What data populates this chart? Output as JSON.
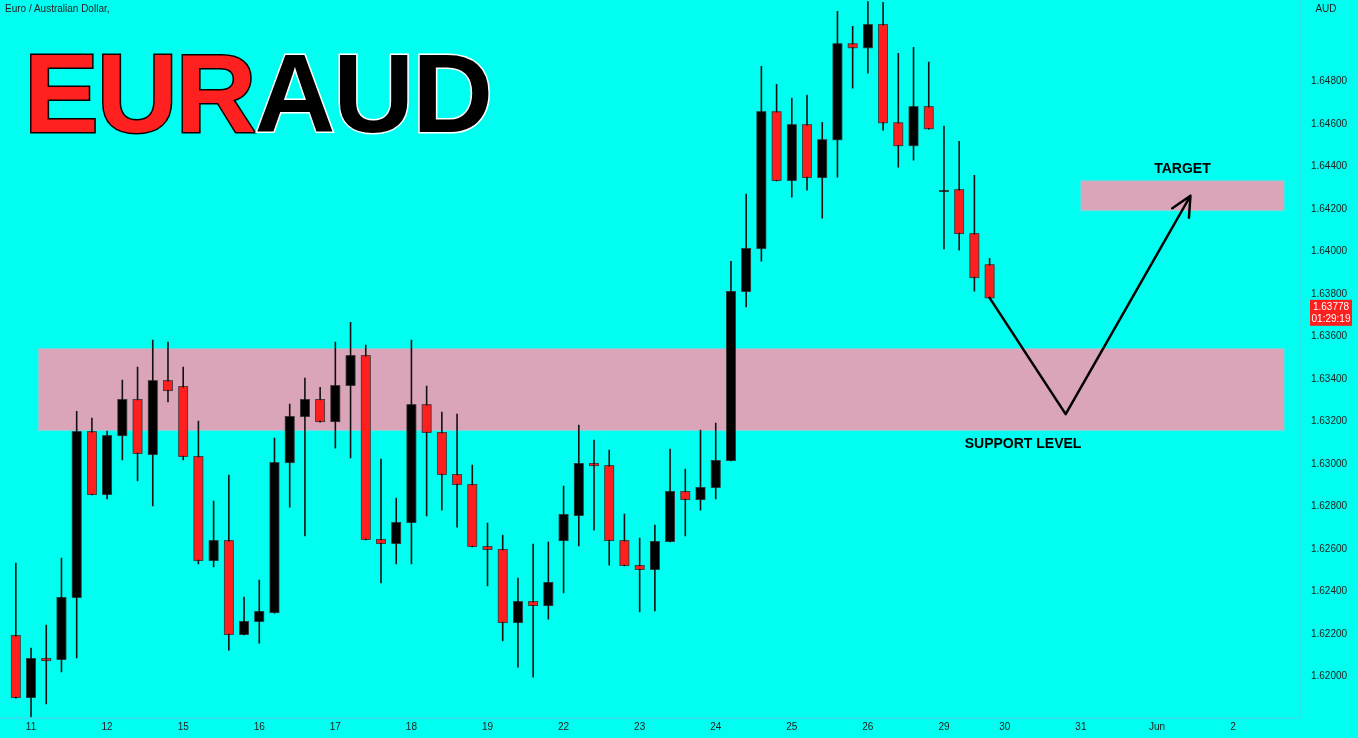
{
  "chart_data": {
    "type": "candlestick",
    "title": "EURAUD",
    "subtitle": "Euro / Australian Dollar,",
    "ylabel": "AUD",
    "categories": [
      null,
      "11",
      null,
      null,
      null,
      null,
      "12",
      null,
      null,
      null,
      null,
      "15",
      null,
      null,
      null,
      null,
      "16",
      null,
      null,
      null,
      null,
      "17",
      null,
      null,
      null,
      null,
      "18",
      null,
      null,
      null,
      null,
      "19",
      null,
      null,
      null,
      null,
      "22",
      null,
      null,
      null,
      null,
      "23",
      null,
      null,
      null,
      null,
      "24",
      null,
      null,
      null,
      null,
      "25",
      null,
      null,
      null,
      null,
      "26",
      null,
      null,
      null,
      null,
      "29",
      null,
      null,
      null,
      "30",
      null,
      null,
      null,
      null,
      "31",
      null,
      null,
      null,
      null,
      "Jun",
      null,
      null,
      null,
      null,
      "2",
      null,
      null,
      null
    ],
    "ohlc": [
      [
        1.62188,
        1.62527,
        1.61896,
        1.61896
      ],
      [
        1.61896,
        1.62127,
        1.61807,
        1.6208
      ],
      [
        1.6208,
        1.62235,
        1.61868,
        1.6207
      ],
      [
        1.62075,
        1.62551,
        1.62019,
        1.62367
      ],
      [
        1.62367,
        1.63242,
        1.62085,
        1.63148
      ],
      [
        1.63148,
        1.6321,
        1.62852,
        1.62852
      ],
      [
        1.62852,
        1.63148,
        1.62833,
        1.63129
      ],
      [
        1.63129,
        1.63388,
        1.63017,
        1.63299
      ],
      [
        1.63299,
        1.6345,
        1.62918,
        1.63045
      ],
      [
        1.6304,
        1.63577,
        1.628,
        1.63388
      ],
      [
        1.63388,
        1.63567,
        1.6329,
        1.63341
      ],
      [
        1.6336,
        1.6345,
        1.63017,
        1.63031
      ],
      [
        1.63031,
        1.63195,
        1.62527,
        1.62541
      ],
      [
        1.62541,
        1.62819,
        1.62513,
        1.62635
      ],
      [
        1.62635,
        1.62941,
        1.62122,
        1.62193
      ],
      [
        1.62193,
        1.62367,
        1.62193,
        1.62254
      ],
      [
        1.62254,
        1.62447,
        1.62155,
        1.62301
      ],
      [
        1.62296,
        1.63115,
        1.62296,
        1.63002
      ],
      [
        1.63002,
        1.63275,
        1.62795,
        1.63219
      ],
      [
        1.63219,
        1.63398,
        1.62659,
        1.63299
      ],
      [
        1.63299,
        1.63355,
        1.63195,
        1.63195
      ],
      [
        1.63195,
        1.63567,
        1.63073,
        1.63365
      ],
      [
        1.63365,
        1.63661,
        1.63026,
        1.63506
      ],
      [
        1.63506,
        1.63553,
        1.6264,
        1.6264
      ],
      [
        1.6264,
        1.63017,
        1.62438,
        1.62621
      ],
      [
        1.62621,
        1.62833,
        1.62527,
        1.6272
      ],
      [
        1.6272,
        1.63577,
        1.62527,
        1.63275
      ],
      [
        1.63275,
        1.6336,
        1.62753,
        1.63144
      ],
      [
        1.63144,
        1.63238,
        1.62781,
        1.62946
      ],
      [
        1.62946,
        1.63228,
        1.62701,
        1.62899
      ],
      [
        1.62899,
        1.62988,
        1.62607,
        1.62607
      ],
      [
        1.62607,
        1.62715,
        1.62424,
        1.62593
      ],
      [
        1.62593,
        1.62659,
        1.62165,
        1.62249
      ],
      [
        1.62249,
        1.62456,
        1.62042,
        1.62348
      ],
      [
        1.62348,
        1.62616,
        1.61995,
        1.62329
      ],
      [
        1.62329,
        1.62626,
        1.62268,
        1.62438
      ],
      [
        1.62635,
        1.62889,
        1.62391,
        1.62758
      ],
      [
        1.62753,
        1.63177,
        1.62612,
        1.62998
      ],
      [
        1.62998,
        1.63106,
        1.62687,
        1.62988
      ],
      [
        1.62988,
        1.63059,
        1.62522,
        1.62635
      ],
      [
        1.62635,
        1.62758,
        1.62518,
        1.62518
      ],
      [
        1.62518,
        1.62645,
        1.62301,
        1.62499
      ],
      [
        1.62499,
        1.62706,
        1.62306,
        1.62631
      ],
      [
        1.62631,
        1.63064,
        1.62631,
        1.62866
      ],
      [
        1.62866,
        1.6297,
        1.62659,
        1.62828
      ],
      [
        1.62828,
        1.63153,
        1.62781,
        1.62885
      ],
      [
        1.62885,
        1.63186,
        1.62833,
        1.63012
      ],
      [
        1.63012,
        1.63948,
        1.63012,
        1.63808
      ],
      [
        1.63808,
        1.64264,
        1.63737,
        1.6401
      ],
      [
        1.6401,
        1.64866,
        1.63953,
        1.64654
      ],
      [
        1.64654,
        1.64781,
        1.6433,
        1.6433
      ],
      [
        1.6433,
        1.64716,
        1.64254,
        1.64593
      ],
      [
        1.64593,
        1.6473,
        1.64287,
        1.64344
      ],
      [
        1.64344,
        1.64602,
        1.64155,
        1.64522
      ],
      [
        1.64522,
        1.65125,
        1.64348,
        1.64974
      ],
      [
        1.64974,
        1.65054,
        1.64767,
        1.64955
      ],
      [
        1.64955,
        1.6517,
        1.64838,
        1.65064
      ],
      [
        1.65064,
        1.65167,
        1.6457,
        1.64602
      ],
      [
        1.64602,
        1.64927,
        1.64395,
        1.64494
      ],
      [
        1.64494,
        1.64955,
        1.64428,
        1.64678
      ],
      [
        1.64678,
        1.64885,
        1.64574,
        1.64574
      ],
      [
        1.64283,
        1.64584,
        1.6401,
        1.64283
      ],
      [
        1.64287,
        1.64513,
        1.64005,
        1.6408
      ],
      [
        1.6408,
        1.64353,
        1.63812,
        1.63873
      ],
      [
        1.63934,
        1.63962,
        1.63778,
        1.63778
      ],
      null,
      null,
      null,
      null,
      null,
      null,
      null,
      null,
      null,
      null,
      null,
      null,
      null,
      null,
      null,
      null,
      null,
      null,
      null
    ],
    "colors": [
      "#ff1f1f",
      "#000000",
      "#ff1f1f",
      "#000000",
      "#000000",
      "#ff1f1f",
      "#000000",
      "#000000",
      "#ff1f1f",
      "#000000",
      "#ff1f1f",
      "#ff1f1f",
      "#ff1f1f",
      "#000000",
      "#ff1f1f",
      "#000000",
      "#000000",
      "#000000",
      "#000000",
      "#000000",
      "#ff1f1f",
      "#000000",
      "#000000",
      "#ff1f1f",
      "#ff1f1f",
      "#000000",
      "#000000",
      "#ff1f1f",
      "#ff1f1f",
      "#ff1f1f",
      "#ff1f1f",
      "#ff1f1f",
      "#ff1f1f",
      "#000000",
      "#ff1f1f",
      "#000000",
      "#000000",
      "#000000",
      "#ff1f1f",
      "#ff1f1f",
      "#ff1f1f",
      "#ff1f1f",
      "#000000",
      "#000000",
      "#ff1f1f",
      "#000000",
      "#000000",
      "#000000",
      "#000000",
      "#000000",
      "#ff1f1f",
      "#000000",
      "#ff1f1f",
      "#000000",
      "#000000",
      "#ff1f1f",
      "#000000",
      "#ff1f1f",
      "#ff1f1f",
      "#000000",
      "#ff1f1f",
      "#000000",
      "#ff1f1f",
      "#ff1f1f",
      "#ff1f1f",
      null,
      null,
      null,
      null,
      null,
      null,
      null,
      null,
      null,
      null,
      null,
      null,
      null,
      null,
      null,
      null,
      null,
      null,
      null
    ],
    "ylim": [
      1.618,
      1.6518
    ],
    "yticks": [
      {
        "value": 1.62,
        "label": "1.62000"
      },
      {
        "value": 1.622,
        "label": "1.62200"
      },
      {
        "value": 1.624,
        "label": "1.62400"
      },
      {
        "value": 1.626,
        "label": "1.62600"
      },
      {
        "value": 1.628,
        "label": "1.62800"
      },
      {
        "value": 1.63,
        "label": "1.63000"
      },
      {
        "value": 1.632,
        "label": "1.63200"
      },
      {
        "value": 1.634,
        "label": "1.63400"
      },
      {
        "value": 1.636,
        "label": "1.63600"
      },
      {
        "value": 1.638,
        "label": "1.63800"
      },
      {
        "value": 1.64,
        "label": "1.64000"
      },
      {
        "value": 1.642,
        "label": "1.64200"
      },
      {
        "value": 1.644,
        "label": "1.64400"
      },
      {
        "value": 1.646,
        "label": "1.64600"
      },
      {
        "value": 1.648,
        "label": "1.64800"
      }
    ],
    "bands": [
      {
        "axis": "y",
        "from": 1.63153,
        "to": 1.63539,
        "label": "SUPPORT LEVEL",
        "color": "#dba5b9"
      },
      {
        "axis": "y",
        "from": 1.64188,
        "to": 1.64329,
        "label": "TARGET",
        "color": "#dba5b9"
      }
    ],
    "annotations": [
      "1.63778",
      "01:29:19"
    ],
    "grid": false
  }
}
